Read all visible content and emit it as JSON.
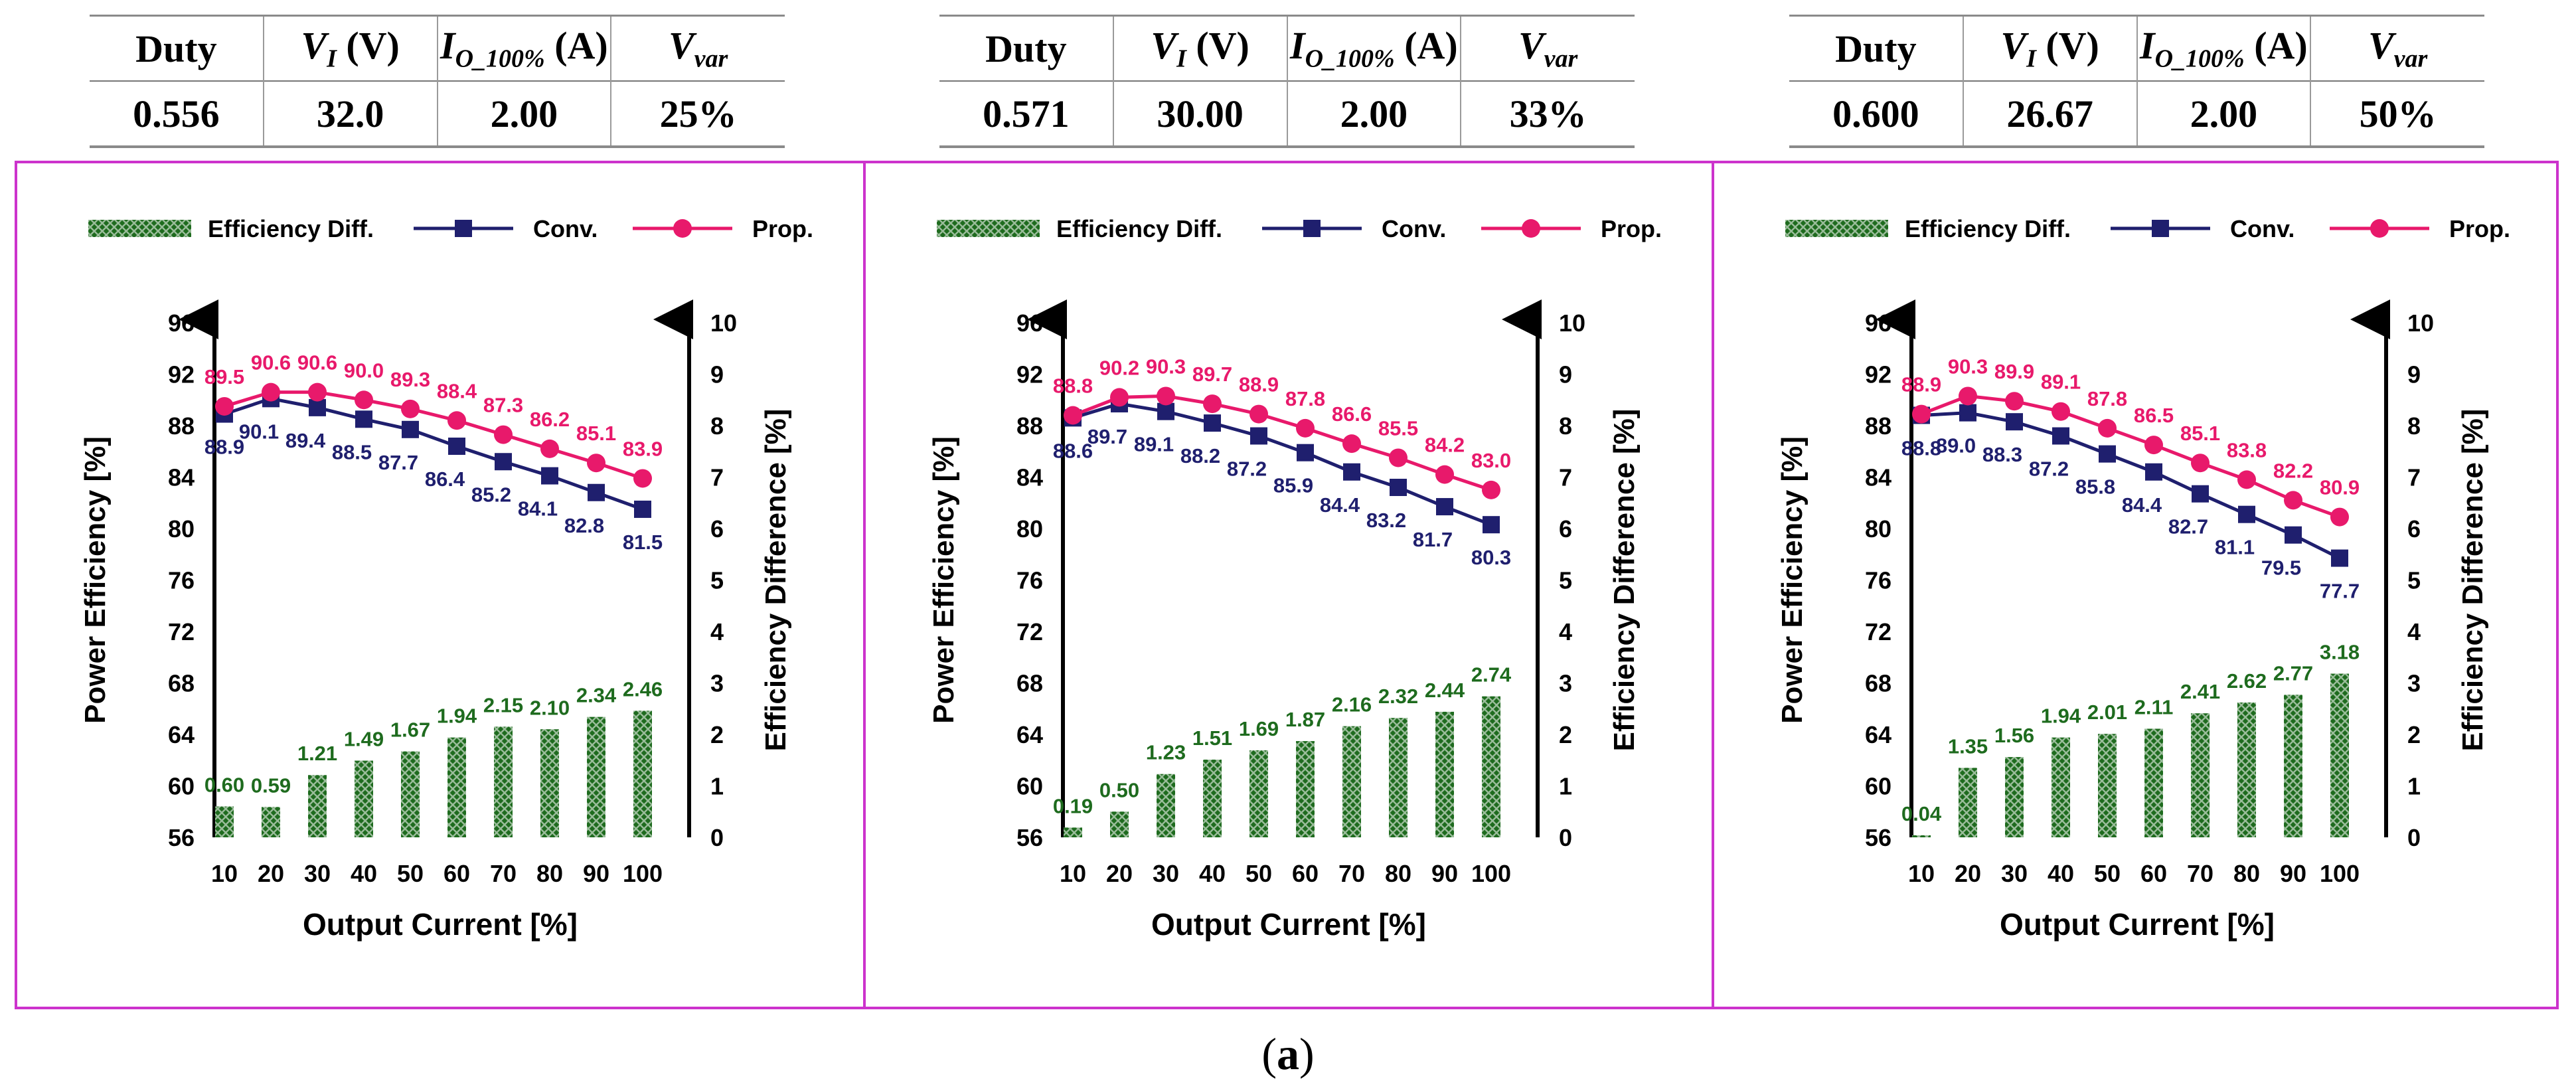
{
  "tables": [
    {
      "headers": [
        "Duty",
        "V",
        "I",
        "V"
      ],
      "header_parts": [
        {
          "main": "Duty"
        },
        {
          "main": "V",
          "sub": "I",
          "unit": " (V)"
        },
        {
          "main": "I",
          "sub": "O_100%",
          "unit": " (A)"
        },
        {
          "main": "V",
          "sub": "var"
        }
      ],
      "values": [
        "0.556",
        "32.0",
        "2.00",
        "25%"
      ]
    },
    {
      "header_parts": [
        {
          "main": "Duty"
        },
        {
          "main": "V",
          "sub": "I",
          "unit": " (V)"
        },
        {
          "main": "I",
          "sub": "O_100%",
          "unit": " (A)"
        },
        {
          "main": "V",
          "sub": "var"
        }
      ],
      "values": [
        "0.571",
        "30.00",
        "2.00",
        "33%"
      ]
    },
    {
      "header_parts": [
        {
          "main": "Duty"
        },
        {
          "main": "V",
          "sub": "I",
          "unit": " (V)"
        },
        {
          "main": "I",
          "sub": "O_100%",
          "unit": " (A)"
        },
        {
          "main": "V",
          "sub": "var"
        }
      ],
      "values": [
        "0.600",
        "26.67",
        "2.00",
        "50%"
      ]
    }
  ],
  "colors": {
    "frame": "#cc33cc",
    "conv": "#1f1f6e",
    "prop": "#e8196b",
    "bar": "#1e6b1e",
    "bar_label": "#1e6b1e"
  },
  "chart_data": [
    {
      "type": "bar+line",
      "categories": [
        "10",
        "20",
        "30",
        "40",
        "50",
        "60",
        "70",
        "80",
        "90",
        "100"
      ],
      "xlabel": "Output Current [%]",
      "ylabel": "Power Efficiency [%]",
      "y2label": "Efficiency Difference [%]",
      "ylim": [
        56,
        96
      ],
      "yticks": [
        56,
        60,
        64,
        68,
        72,
        76,
        80,
        84,
        88,
        92,
        96
      ],
      "y2lim": [
        0,
        10
      ],
      "y2ticks": [
        0,
        1,
        2,
        3,
        4,
        5,
        6,
        7,
        8,
        9,
        10
      ],
      "legend": [
        "Efficiency Diff.",
        "Conv.",
        "Prop."
      ],
      "series": [
        {
          "name": "Efficiency Diff.",
          "axis": "right",
          "kind": "bar",
          "values": [
            0.6,
            0.59,
            1.21,
            1.49,
            1.67,
            1.94,
            2.15,
            2.1,
            2.34,
            2.46
          ],
          "labels": [
            "0.60",
            "0.59",
            "1.21",
            "1.49",
            "1.67",
            "1.94",
            "2.15",
            "2.10",
            "2.34",
            "2.46"
          ]
        },
        {
          "name": "Conv.",
          "axis": "left",
          "kind": "line-square",
          "values": [
            88.9,
            90.1,
            89.4,
            88.5,
            87.7,
            86.4,
            85.2,
            84.1,
            82.8,
            81.5
          ],
          "labels": [
            "88.9",
            "90.1",
            "89.4",
            "88.5",
            "87.7",
            "86.4",
            "85.2",
            "84.1",
            "82.8",
            "81.5"
          ]
        },
        {
          "name": "Prop.",
          "axis": "left",
          "kind": "line-circle",
          "values": [
            89.5,
            90.6,
            90.6,
            90.0,
            89.3,
            88.4,
            87.3,
            86.2,
            85.1,
            83.9
          ],
          "labels": [
            "89.5",
            "90.6",
            "90.6",
            "90.0",
            "89.3",
            "88.4",
            "87.3",
            "86.2",
            "85.1",
            "83.9"
          ]
        }
      ]
    },
    {
      "type": "bar+line",
      "categories": [
        "10",
        "20",
        "30",
        "40",
        "50",
        "60",
        "70",
        "80",
        "90",
        "100"
      ],
      "xlabel": "Output Current [%]",
      "ylabel": "Power Efficiency [%]",
      "y2label": "Efficiency Difference [%]",
      "ylim": [
        56,
        96
      ],
      "yticks": [
        56,
        60,
        64,
        68,
        72,
        76,
        80,
        84,
        88,
        92,
        96
      ],
      "y2lim": [
        0,
        10
      ],
      "y2ticks": [
        0,
        1,
        2,
        3,
        4,
        5,
        6,
        7,
        8,
        9,
        10
      ],
      "legend": [
        "Efficiency Diff.",
        "Conv.",
        "Prop."
      ],
      "series": [
        {
          "name": "Efficiency Diff.",
          "axis": "right",
          "kind": "bar",
          "values": [
            0.19,
            0.5,
            1.23,
            1.51,
            1.69,
            1.87,
            2.16,
            2.32,
            2.44,
            2.74
          ],
          "labels": [
            "0.19",
            "0.50",
            "1.23",
            "1.51",
            "1.69",
            "1.87",
            "2.16",
            "2.32",
            "2.44",
            "2.74"
          ]
        },
        {
          "name": "Conv.",
          "axis": "left",
          "kind": "line-square",
          "values": [
            88.6,
            89.7,
            89.1,
            88.2,
            87.2,
            85.9,
            84.4,
            83.2,
            81.7,
            80.3
          ],
          "labels": [
            "88.6",
            "89.7",
            "89.1",
            "88.2",
            "87.2",
            "85.9",
            "84.4",
            "83.2",
            "81.7",
            "80.3"
          ]
        },
        {
          "name": "Prop.",
          "axis": "left",
          "kind": "line-circle",
          "values": [
            88.8,
            90.2,
            90.3,
            89.7,
            88.9,
            87.8,
            86.6,
            85.5,
            84.2,
            83.0
          ],
          "labels": [
            "88.8",
            "90.2",
            "90.3",
            "89.7",
            "88.9",
            "87.8",
            "86.6",
            "85.5",
            "84.2",
            "83.0"
          ]
        }
      ]
    },
    {
      "type": "bar+line",
      "categories": [
        "10",
        "20",
        "30",
        "40",
        "50",
        "60",
        "70",
        "80",
        "90",
        "100"
      ],
      "xlabel": "Output Current [%]",
      "ylabel": "Power Efficiency [%]",
      "y2label": "Efficiency Difference [%]",
      "ylim": [
        56,
        96
      ],
      "yticks": [
        56,
        60,
        64,
        68,
        72,
        76,
        80,
        84,
        88,
        92,
        96
      ],
      "y2lim": [
        0,
        10
      ],
      "y2ticks": [
        0,
        1,
        2,
        3,
        4,
        5,
        6,
        7,
        8,
        9,
        10
      ],
      "legend": [
        "Efficiency Diff.",
        "Conv.",
        "Prop."
      ],
      "series": [
        {
          "name": "Efficiency Diff.",
          "axis": "right",
          "kind": "bar",
          "values": [
            0.04,
            1.35,
            1.56,
            1.94,
            2.01,
            2.11,
            2.41,
            2.62,
            2.77,
            3.18
          ],
          "labels": [
            "0.04",
            "1.35",
            "1.56",
            "1.94",
            "2.01",
            "2.11",
            "2.41",
            "2.62",
            "2.77",
            "3.18"
          ]
        },
        {
          "name": "Conv.",
          "axis": "left",
          "kind": "line-square",
          "values": [
            88.8,
            89.0,
            88.3,
            87.2,
            85.8,
            84.4,
            82.7,
            81.1,
            79.5,
            77.7
          ],
          "labels": [
            "88.8",
            "89.0",
            "88.3",
            "87.2",
            "85.8",
            "84.4",
            "82.7",
            "81.1",
            "79.5",
            "77.7"
          ]
        },
        {
          "name": "Prop.",
          "axis": "left",
          "kind": "line-circle",
          "values": [
            88.9,
            90.3,
            89.9,
            89.1,
            87.8,
            86.5,
            85.1,
            83.8,
            82.2,
            80.9
          ],
          "labels": [
            "88.9",
            "90.3",
            "89.9",
            "89.1",
            "87.8",
            "86.5",
            "85.1",
            "83.8",
            "82.2",
            "80.9"
          ]
        }
      ]
    }
  ],
  "caption": {
    "open": "(",
    "letter": "a",
    "close": ")"
  }
}
